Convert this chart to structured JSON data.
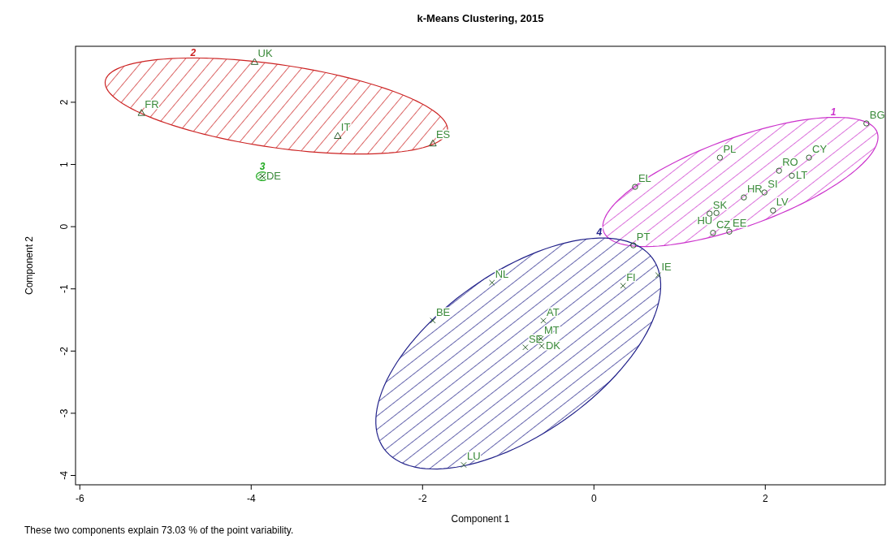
{
  "chart_data": {
    "type": "scatter",
    "title": "k-Means Clustering, 2015",
    "xlabel": "Component 1",
    "ylabel": "Component 2",
    "xlim": [
      -6.05,
      3.4
    ],
    "ylim": [
      -4.15,
      2.9
    ],
    "xticks": [
      -6,
      -4,
      -2,
      0,
      2
    ],
    "yticks": [
      -4,
      -3,
      -2,
      -1,
      0,
      1,
      2
    ],
    "grid": false,
    "series": [
      {
        "color": "#2f5f2f",
        "marker": "circle",
        "x": [
          3.18,
          1.47,
          2.16,
          2.51,
          2.31,
          1.99,
          1.75,
          1.35,
          1.43,
          2.09,
          1.39,
          1.58,
          0.48,
          0.46
        ],
        "values": [
          1.66,
          1.11,
          0.9,
          1.11,
          0.82,
          0.55,
          0.47,
          0.21,
          0.22,
          0.26,
          -0.1,
          -0.08,
          0.64,
          -0.3
        ]
      },
      {
        "color": "#2f5f2f",
        "marker": "triangle",
        "x": [
          -3.96,
          -5.28,
          -2.99,
          -1.88
        ],
        "values": [
          2.65,
          1.83,
          1.46,
          1.34
        ]
      },
      {
        "color": "#2f5f2f",
        "marker": "cross",
        "x": [
          -3.87
        ],
        "values": [
          0.81
        ]
      },
      {
        "color": "#2f5f2f",
        "marker": "cross",
        "x": [
          -1.19,
          -1.88,
          0.34,
          0.75,
          -0.59,
          -0.62,
          -0.8,
          -0.61,
          -1.52
        ],
        "values": [
          -0.9,
          -1.51,
          -0.95,
          -0.78,
          -1.51,
          -1.8,
          -1.94,
          -1.92,
          -3.83
        ]
      }
    ],
    "annotations": [
      "1",
      "2",
      "3",
      "4",
      {
        "text": "BG",
        "x": 3.18,
        "y": 1.66
      },
      {
        "text": "PL",
        "x": 1.47,
        "y": 1.11
      },
      {
        "text": "RO",
        "x": 2.16,
        "y": 0.9
      },
      {
        "text": "CY",
        "x": 2.51,
        "y": 1.11
      },
      {
        "text": "LT",
        "x": 2.31,
        "y": 0.82
      },
      {
        "text": "SI",
        "x": 1.99,
        "y": 0.55
      },
      {
        "text": "HR",
        "x": 1.75,
        "y": 0.47
      },
      {
        "text": "SK",
        "x": 1.35,
        "y": 0.21
      },
      {
        "text": "HU",
        "x": 1.43,
        "y": 0.22
      },
      {
        "text": "LV",
        "x": 2.09,
        "y": 0.26
      },
      {
        "text": "CZ",
        "x": 1.39,
        "y": -0.1
      },
      {
        "text": "EE",
        "x": 1.58,
        "y": -0.08
      },
      {
        "text": "EL",
        "x": 0.48,
        "y": 0.64
      },
      {
        "text": "PT",
        "x": 0.46,
        "y": -0.3
      },
      {
        "text": "UK",
        "x": -3.96,
        "y": 2.65
      },
      {
        "text": "FR",
        "x": -5.28,
        "y": 1.83
      },
      {
        "text": "IT",
        "x": -2.99,
        "y": 1.46
      },
      {
        "text": "ES",
        "x": -1.88,
        "y": 1.34
      },
      {
        "text": "DE",
        "x": -3.87,
        "y": 0.81
      },
      {
        "text": "NL",
        "x": -1.19,
        "y": -0.9
      },
      {
        "text": "BE",
        "x": -1.88,
        "y": -1.51
      },
      {
        "text": "FI",
        "x": 0.34,
        "y": -0.95
      },
      {
        "text": "IE",
        "x": 0.75,
        "y": -0.78
      },
      {
        "text": "AT",
        "x": -0.59,
        "y": -1.51
      },
      {
        "text": "MT",
        "x": -0.62,
        "y": -1.8
      },
      {
        "text": "SE",
        "x": -0.8,
        "y": -1.94
      },
      {
        "text": "DK",
        "x": -0.61,
        "y": -1.92
      },
      {
        "text": "LU",
        "x": -1.52,
        "y": -3.83
      },
      "These two components explain 73.03 % of the point variability."
    ]
  }
}
